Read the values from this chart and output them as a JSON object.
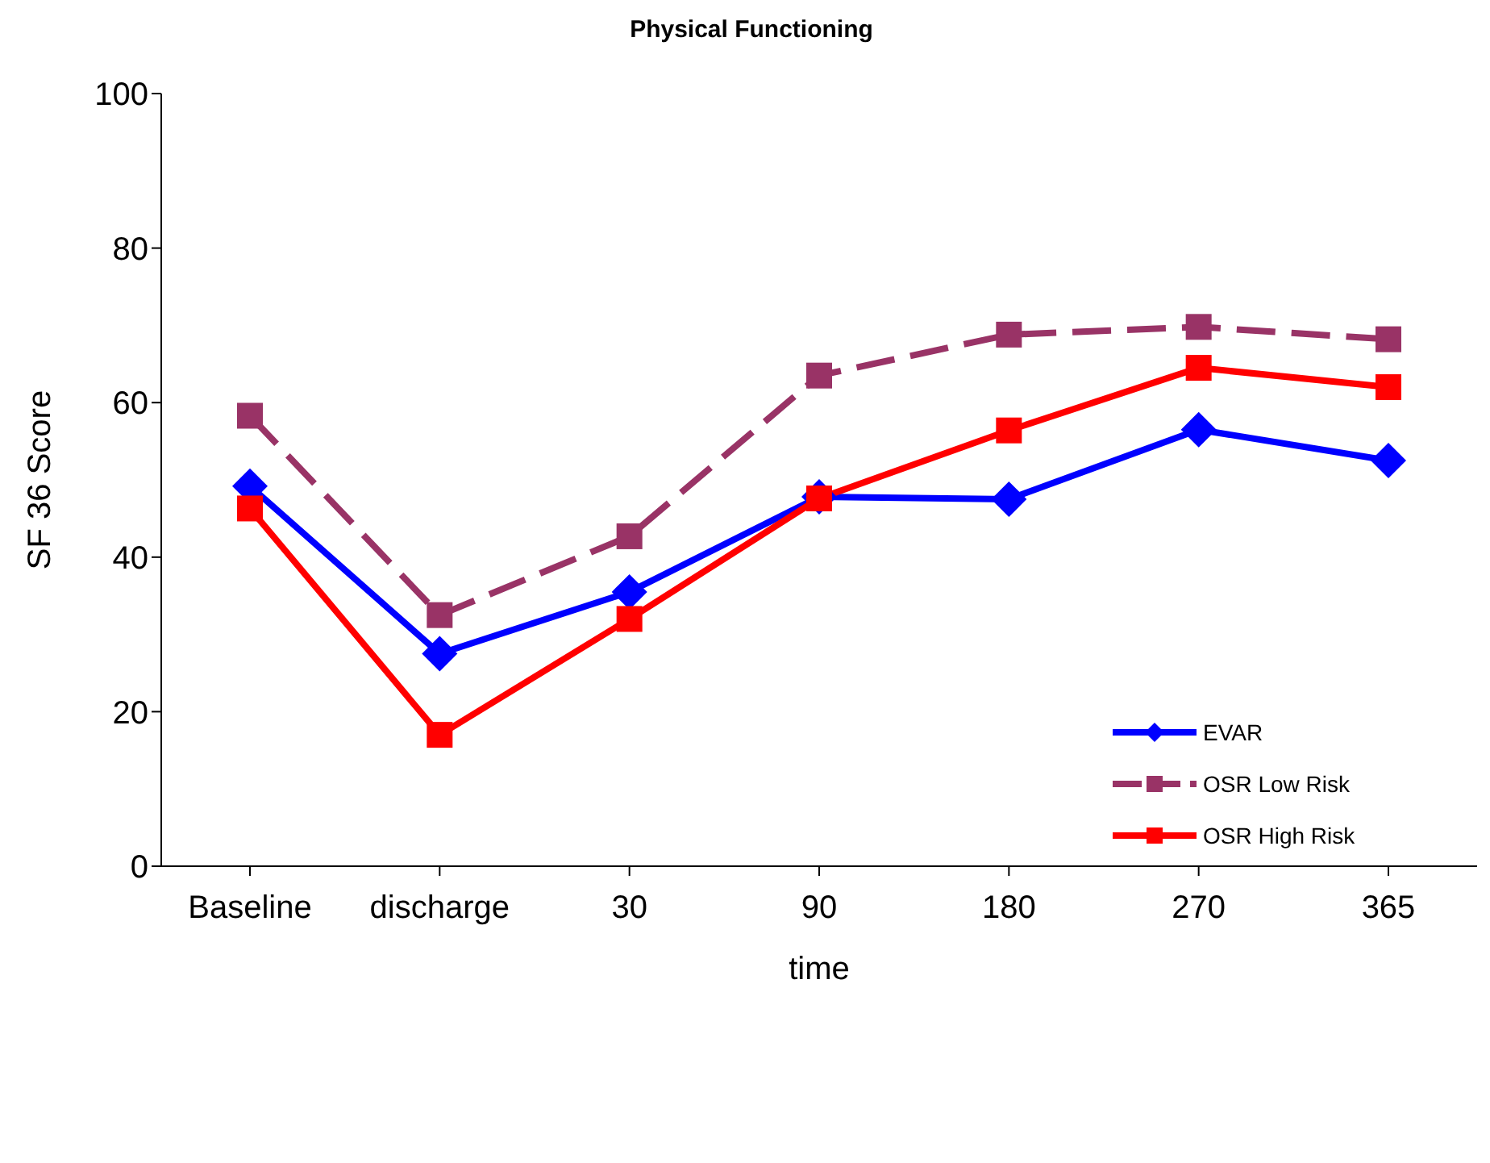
{
  "chart_data": {
    "type": "line",
    "title": "Physical Functioning",
    "xlabel": "time",
    "ylabel": "SF 36 Score",
    "categories": [
      "Baseline",
      "discharge",
      "30",
      "90",
      "180",
      "270",
      "365"
    ],
    "series": [
      {
        "name": "EVAR",
        "color": "#0000ff",
        "marker": "diamond",
        "line_style": "solid",
        "values": [
          49.2,
          27.5,
          35.5,
          47.8,
          47.5,
          56.5,
          52.5
        ]
      },
      {
        "name": "OSR Low Risk",
        "color": "#993366",
        "marker": "square",
        "line_style": "dashed",
        "values": [
          58.3,
          32.5,
          42.7,
          63.5,
          68.8,
          69.8,
          68.2
        ]
      },
      {
        "name": "OSR High Risk",
        "color": "#ff0000",
        "marker": "square",
        "line_style": "solid",
        "values": [
          46.3,
          17,
          32,
          47.6,
          56.4,
          64.5,
          62
        ]
      }
    ],
    "ylim": [
      0,
      100
    ],
    "yticks": [
      0,
      20,
      40,
      60,
      80,
      100
    ],
    "grid": false,
    "legend": "bottom right"
  }
}
